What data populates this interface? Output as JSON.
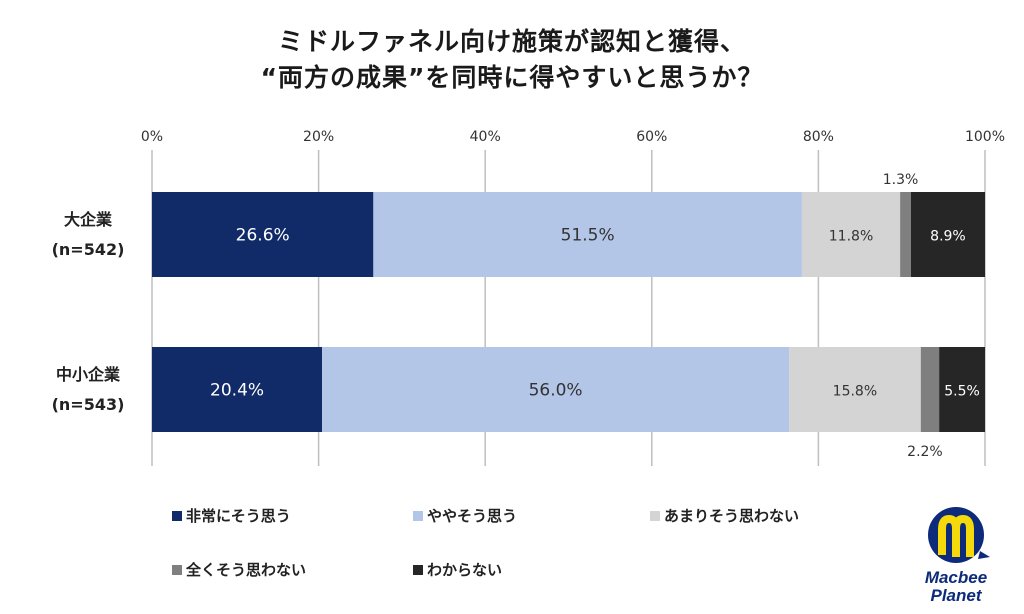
{
  "title": {
    "line1": "ミドルファネル向け施策が認知と獲得、",
    "line2": "“両方の成果”を同時に得やすいと思うか？"
  },
  "chart_data": {
    "type": "bar",
    "orientation": "horizontal",
    "stacked": true,
    "categories": [
      {
        "name": "大企業",
        "n": "(n=542)"
      },
      {
        "name": "中小企業",
        "n": "(n=543)"
      }
    ],
    "xlim": [
      0,
      100
    ],
    "x_ticks": [
      "0%",
      "20%",
      "40%",
      "60%",
      "80%",
      "100%"
    ],
    "grid": true,
    "legend_position": "bottom",
    "series": [
      {
        "name": "非常にそう思う",
        "color": "#112a68",
        "values": [
          26.6,
          20.4
        ],
        "labels": [
          "26.6%",
          "20.4%"
        ]
      },
      {
        "name": "ややそう思う",
        "color": "#b4c6e7",
        "values": [
          51.5,
          56.0
        ],
        "labels": [
          "51.5%",
          "56.0%"
        ]
      },
      {
        "name": "あまりそう思わない",
        "color": "#d4d4d4",
        "values": [
          11.8,
          15.8
        ],
        "labels": [
          "11.8%",
          "15.8%"
        ]
      },
      {
        "name": "全くそう思わない",
        "color": "#7f7f7f",
        "values": [
          1.3,
          2.2
        ],
        "labels": [
          "1.3%",
          "2.2%"
        ]
      },
      {
        "name": "わからない",
        "color": "#262626",
        "values": [
          8.9,
          5.5
        ],
        "labels": [
          "8.9%",
          "5.5%"
        ]
      }
    ]
  },
  "logo": {
    "line1": "Macbee",
    "line2": "Planet",
    "navy": "#0d2b7a",
    "yellow": "#f5d90a"
  }
}
